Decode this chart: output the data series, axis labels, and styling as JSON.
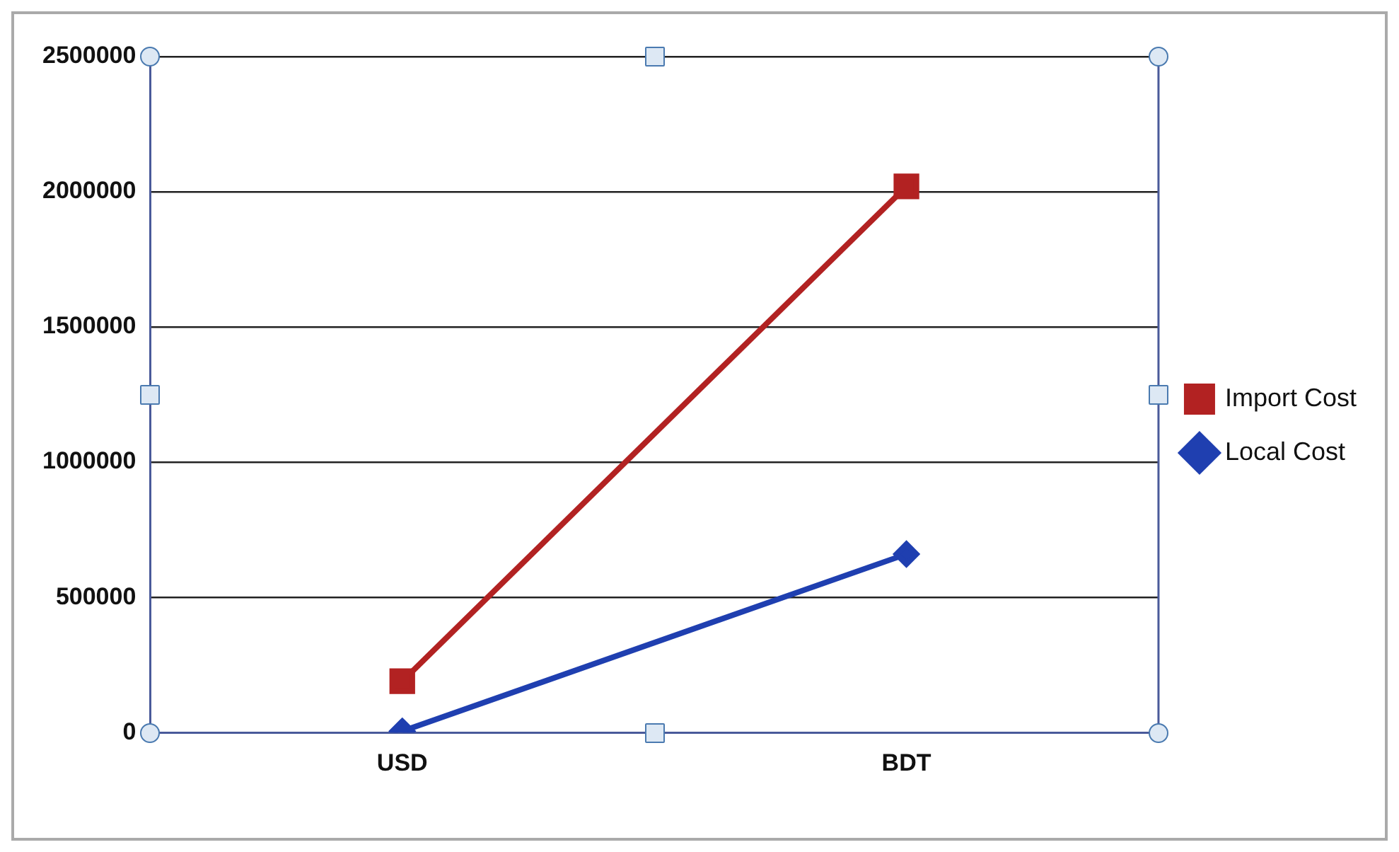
{
  "chart_data": {
    "type": "line",
    "categories": [
      "USD",
      "BDT"
    ],
    "series": [
      {
        "name": "Import Cost",
        "color": "#b22222",
        "values": [
          190000,
          2020000
        ],
        "marker": "square"
      },
      {
        "name": "Local Cost",
        "color": "#1f3fb0",
        "values": [
          5000,
          660000
        ],
        "marker": "diamond"
      }
    ],
    "ylim": [
      0,
      2500000
    ],
    "yticks": [
      0,
      500000,
      1000000,
      1500000,
      2000000,
      2500000
    ],
    "grid": "y",
    "legend": "right",
    "line_style": "solid"
  }
}
